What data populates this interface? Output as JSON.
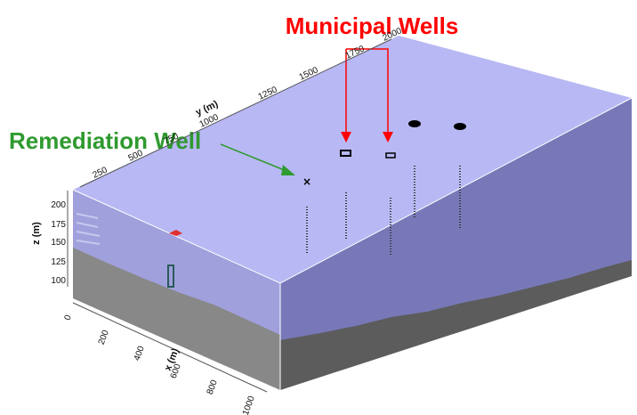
{
  "labels": {
    "municipal_wells": "Municipal Wells",
    "remediation_well": "Remediation Well"
  },
  "axes": {
    "x": {
      "title": "x (m)",
      "ticks": [
        "0",
        "200",
        "400",
        "600",
        "800",
        "1000"
      ]
    },
    "y": {
      "title": "y (m)",
      "ticks": [
        "250",
        "500",
        "750",
        "1000",
        "1250",
        "1500",
        "1750",
        "2000"
      ]
    },
    "z": {
      "title": "z (m)",
      "ticks": [
        "200",
        "175",
        "150",
        "125",
        "100"
      ]
    }
  },
  "colors": {
    "municipal_label": "#ff0000",
    "remediation_label": "#2f9a2f",
    "top_face": "#b8b8f4",
    "front_face": "#a0a0dc",
    "side_face": "#7878b8",
    "bedrock": "#888888",
    "bedrock_side": "#5c5c5c",
    "grid_edge": "#ffffff"
  }
}
